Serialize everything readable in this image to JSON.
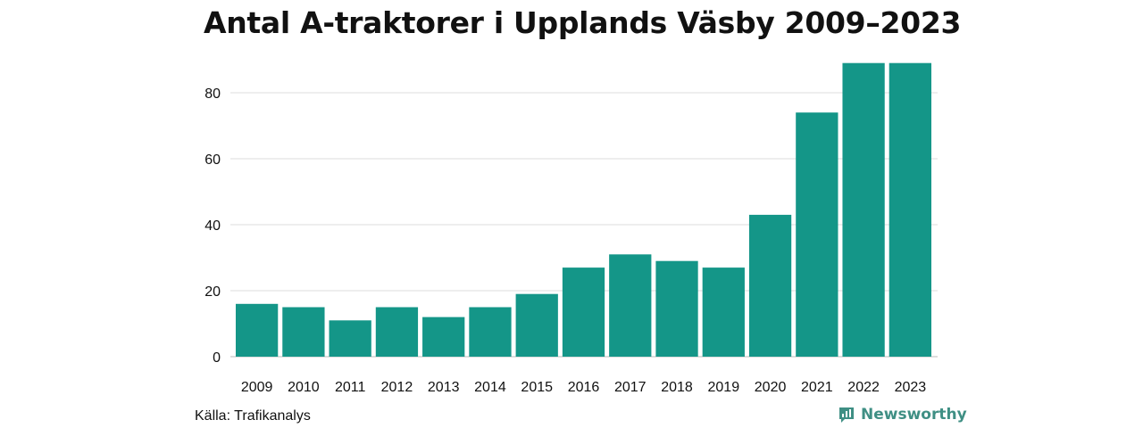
{
  "title": "Antal A-traktorer i Upplands Väsby 2009–2023",
  "source": "Källa: Trafikanalys",
  "brand": {
    "name": "Newsworthy",
    "color": "#3f8f84",
    "icon": "newsworthy-logo-icon"
  },
  "chart_data": {
    "type": "bar",
    "categories": [
      "2009",
      "2010",
      "2011",
      "2012",
      "2013",
      "2014",
      "2015",
      "2016",
      "2017",
      "2018",
      "2019",
      "2020",
      "2021",
      "2022",
      "2023"
    ],
    "values": [
      16,
      15,
      11,
      15,
      12,
      15,
      19,
      27,
      31,
      29,
      27,
      43,
      74,
      89,
      89
    ],
    "ylim": [
      0,
      90
    ],
    "yticks": [
      0,
      20,
      40,
      60,
      80
    ],
    "grid": true,
    "bar_color": "#149688",
    "grid_color": "#dddddd"
  }
}
